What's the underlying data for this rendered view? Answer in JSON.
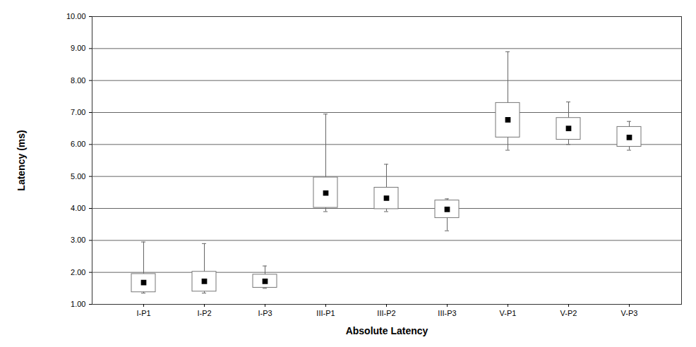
{
  "chart_data": {
    "type": "box",
    "xlabel": "Absolute Latency",
    "ylabel": "Latency (ms)",
    "categories": [
      "I-P1",
      "I-P2",
      "I-P3",
      "III-P1",
      "III-P2",
      "III-P3",
      "V-P1",
      "V-P2",
      "V-P3"
    ],
    "min": [
      1.35,
      1.35,
      1.5,
      3.9,
      3.9,
      3.3,
      5.82,
      6.0,
      5.82
    ],
    "q1": [
      1.38,
      1.4,
      1.52,
      4.02,
      3.98,
      3.7,
      6.22,
      6.15,
      5.93
    ],
    "q3": [
      1.95,
      2.02,
      1.93,
      4.97,
      4.65,
      4.25,
      7.3,
      6.83,
      6.55
    ],
    "max": [
      2.95,
      2.9,
      2.2,
      6.95,
      5.38,
      4.3,
      8.9,
      7.33,
      6.72
    ],
    "mean": [
      1.68,
      1.72,
      1.72,
      4.48,
      4.32,
      3.97,
      6.77,
      6.5,
      6.22
    ],
    "marker": "square",
    "color": "#000000",
    "ylim": [
      1,
      10
    ],
    "yticks": [
      {
        "value": 1,
        "label": "1.00"
      },
      {
        "value": 2,
        "label": "2.00"
      },
      {
        "value": 3,
        "label": "3.00"
      },
      {
        "value": 4,
        "label": "4.00"
      },
      {
        "value": 5,
        "label": "5.00"
      },
      {
        "value": 6,
        "label": "6.00"
      },
      {
        "value": 7,
        "label": "7.00"
      },
      {
        "value": 8,
        "label": "8.00"
      },
      {
        "value": 9,
        "label": "9.00"
      },
      {
        "value": 10,
        "label": "10.00"
      }
    ],
    "grid": true
  }
}
